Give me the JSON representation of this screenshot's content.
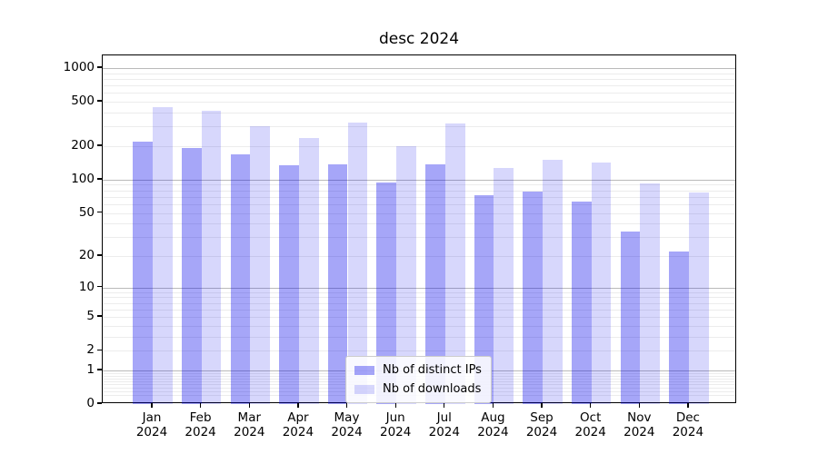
{
  "title": "desc 2024",
  "colors": {
    "bar_blue": "#0000eb",
    "ips_fill": "#a6a6f1",
    "downloads_fill": "#dadaf9",
    "grid_major": "#b9b9b9",
    "grid_minor": "#ececec",
    "axis": "#000000",
    "legend_border": "#cccccc"
  },
  "chart_data": {
    "type": "bar",
    "title": "desc 2024",
    "categories": [
      "Jan",
      "Feb",
      "Mar",
      "Apr",
      "May",
      "Jun",
      "Jul",
      "Aug",
      "Sep",
      "Oct",
      "Nov",
      "Dec"
    ],
    "year": "2024",
    "series": [
      {
        "name": "Nb of distinct IPs",
        "key": "ips",
        "values": [
          220,
          192,
          170,
          135,
          137,
          95,
          137,
          73,
          78,
          63,
          34,
          22
        ]
      },
      {
        "name": "Nb of downloads",
        "key": "downloads",
        "values": [
          450,
          412,
          305,
          236,
          325,
          200,
          322,
          127,
          152,
          144,
          93,
          77
        ]
      }
    ],
    "yscale": "log1p",
    "yticks": [
      1000,
      500,
      200,
      100,
      50,
      20,
      10,
      5,
      2,
      1,
      0
    ],
    "ylim": [
      0,
      1300
    ],
    "grid": true,
    "legend_position": "lower-center"
  }
}
